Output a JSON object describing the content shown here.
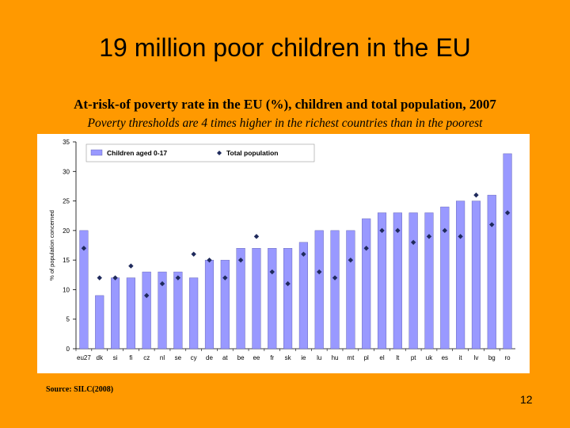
{
  "slide": {
    "title": "19 million poor children in the EU",
    "source": "Source: SILC(2008)",
    "page_number": "12"
  },
  "chart_data": {
    "type": "bar",
    "title": "At-risk-of poverty rate in the EU (%), children and total population, 2007",
    "subtitle": "Poverty thresholds are 4 times higher in the richest countries than in the poorest",
    "ylabel": "% of population concerned",
    "xlabel": "",
    "ylim": [
      0,
      35
    ],
    "yticks": [
      0,
      5,
      10,
      15,
      20,
      25,
      30,
      35
    ],
    "grid": false,
    "legend_position": "top-left",
    "categories": [
      "eu27",
      "dk",
      "si",
      "fi",
      "cz",
      "nl",
      "se",
      "cy",
      "de",
      "at",
      "be",
      "ee",
      "fr",
      "sk",
      "ie",
      "lu",
      "hu",
      "mt",
      "pl",
      "el",
      "lt",
      "pt",
      "uk",
      "es",
      "it",
      "lv",
      "bg",
      "ro"
    ],
    "series": [
      {
        "name": "Children aged 0-17",
        "kind": "bar",
        "color": "#9999FF",
        "values": [
          20,
          9,
          12,
          12,
          13,
          13,
          13,
          12,
          15,
          15,
          17,
          17,
          17,
          17,
          18,
          20,
          20,
          20,
          22,
          23,
          23,
          23,
          23,
          24,
          25,
          25,
          26,
          33
        ]
      },
      {
        "name": "Total population",
        "kind": "marker",
        "color": "#1F2A5C",
        "values": [
          17,
          12,
          12,
          14,
          9,
          11,
          12,
          16,
          15,
          12,
          15,
          19,
          13,
          11,
          16,
          13,
          12,
          15,
          17,
          20,
          20,
          18,
          19,
          20,
          19,
          26,
          21,
          23
        ]
      }
    ]
  }
}
